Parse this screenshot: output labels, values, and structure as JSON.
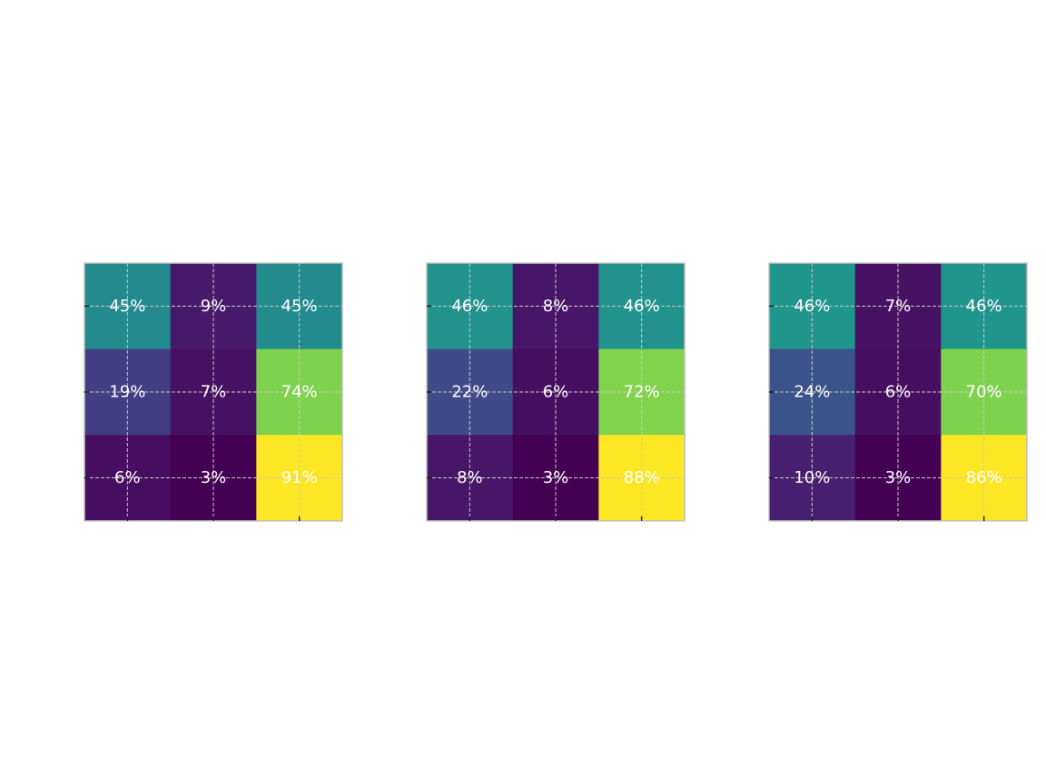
{
  "chart_data": [
    {
      "type": "heatmap",
      "rows": 3,
      "cols": 3,
      "values": [
        [
          45,
          9,
          45
        ],
        [
          19,
          7,
          74
        ],
        [
          6,
          3,
          91
        ]
      ],
      "labels": [
        [
          "45%",
          "9%",
          "45%"
        ],
        [
          "19%",
          "7%",
          "74%"
        ],
        [
          "6%",
          "3%",
          "91%"
        ]
      ],
      "colormap": "viridis",
      "vmin": 0,
      "vmax": 100,
      "grid": true
    },
    {
      "type": "heatmap",
      "rows": 3,
      "cols": 3,
      "values": [
        [
          46,
          8,
          46
        ],
        [
          22,
          6,
          72
        ],
        [
          8,
          3,
          88
        ]
      ],
      "labels": [
        [
          "46%",
          "8%",
          "46%"
        ],
        [
          "22%",
          "6%",
          "72%"
        ],
        [
          "8%",
          "3%",
          "88%"
        ]
      ],
      "colormap": "viridis",
      "vmin": 0,
      "vmax": 100,
      "grid": true
    },
    {
      "type": "heatmap",
      "rows": 3,
      "cols": 3,
      "values": [
        [
          46,
          7,
          46
        ],
        [
          24,
          6,
          70
        ],
        [
          10,
          3,
          86
        ]
      ],
      "labels": [
        [
          "46%",
          "7%",
          "46%"
        ],
        [
          "24%",
          "6%",
          "70%"
        ],
        [
          "10%",
          "3%",
          "86%"
        ]
      ],
      "colormap": "viridis",
      "vmin": 0,
      "vmax": 100,
      "grid": true
    }
  ]
}
